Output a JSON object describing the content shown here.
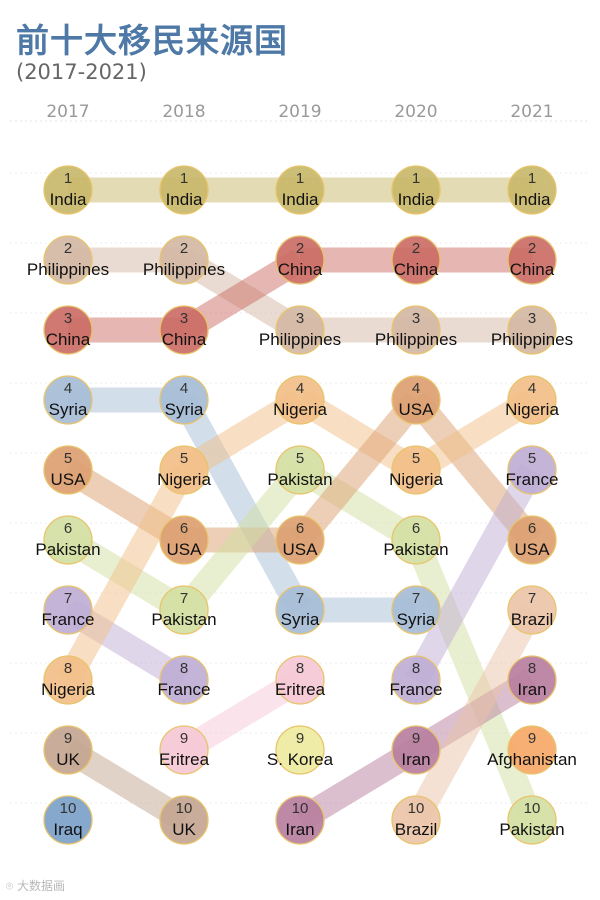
{
  "header": {
    "title": "前十大移民来源国",
    "subtitle": "(2017-2021)"
  },
  "watermark": "大数据画",
  "chart_data": {
    "type": "bump",
    "years": [
      "2017",
      "2018",
      "2019",
      "2020",
      "2021"
    ],
    "ranks": [
      1,
      2,
      3,
      4,
      5,
      6,
      7,
      8,
      9,
      10
    ],
    "rankings": {
      "2017": [
        "India",
        "Philippines",
        "China",
        "Syria",
        "USA",
        "Pakistan",
        "France",
        "Nigeria",
        "UK",
        "Iraq"
      ],
      "2018": [
        "India",
        "Philippines",
        "China",
        "Syria",
        "Nigeria",
        "USA",
        "Pakistan",
        "France",
        "Eritrea",
        "UK"
      ],
      "2019": [
        "India",
        "China",
        "Philippines",
        "Nigeria",
        "Pakistan",
        "USA",
        "Syria",
        "Eritrea",
        "S. Korea",
        "Iran"
      ],
      "2020": [
        "India",
        "China",
        "Philippines",
        "USA",
        "Nigeria",
        "Pakistan",
        "Syria",
        "France",
        "Iran",
        "Brazil"
      ],
      "2021": [
        "India",
        "China",
        "Philippines",
        "Nigeria",
        "France",
        "USA",
        "Brazil",
        "Iran",
        "Afghanistan",
        "Pakistan"
      ]
    },
    "colors": {
      "India": "#c8b86a",
      "Philippines": "#d3b8a4",
      "China": "#cc6e66",
      "Syria": "#a6bdd6",
      "USA": "#dca070",
      "Pakistan": "#d2e0a2",
      "France": "#bfaed4",
      "Nigeria": "#f2bf88",
      "UK": "#c4a691",
      "Iraq": "#7ba1c8",
      "Eritrea": "#f6c8d6",
      "S. Korea": "#eeeaa0",
      "Iran": "#b87f9f",
      "Brazil": "#ecc4a8",
      "Afghanistan": "#f6a868"
    },
    "grid": true,
    "legend": "none"
  }
}
